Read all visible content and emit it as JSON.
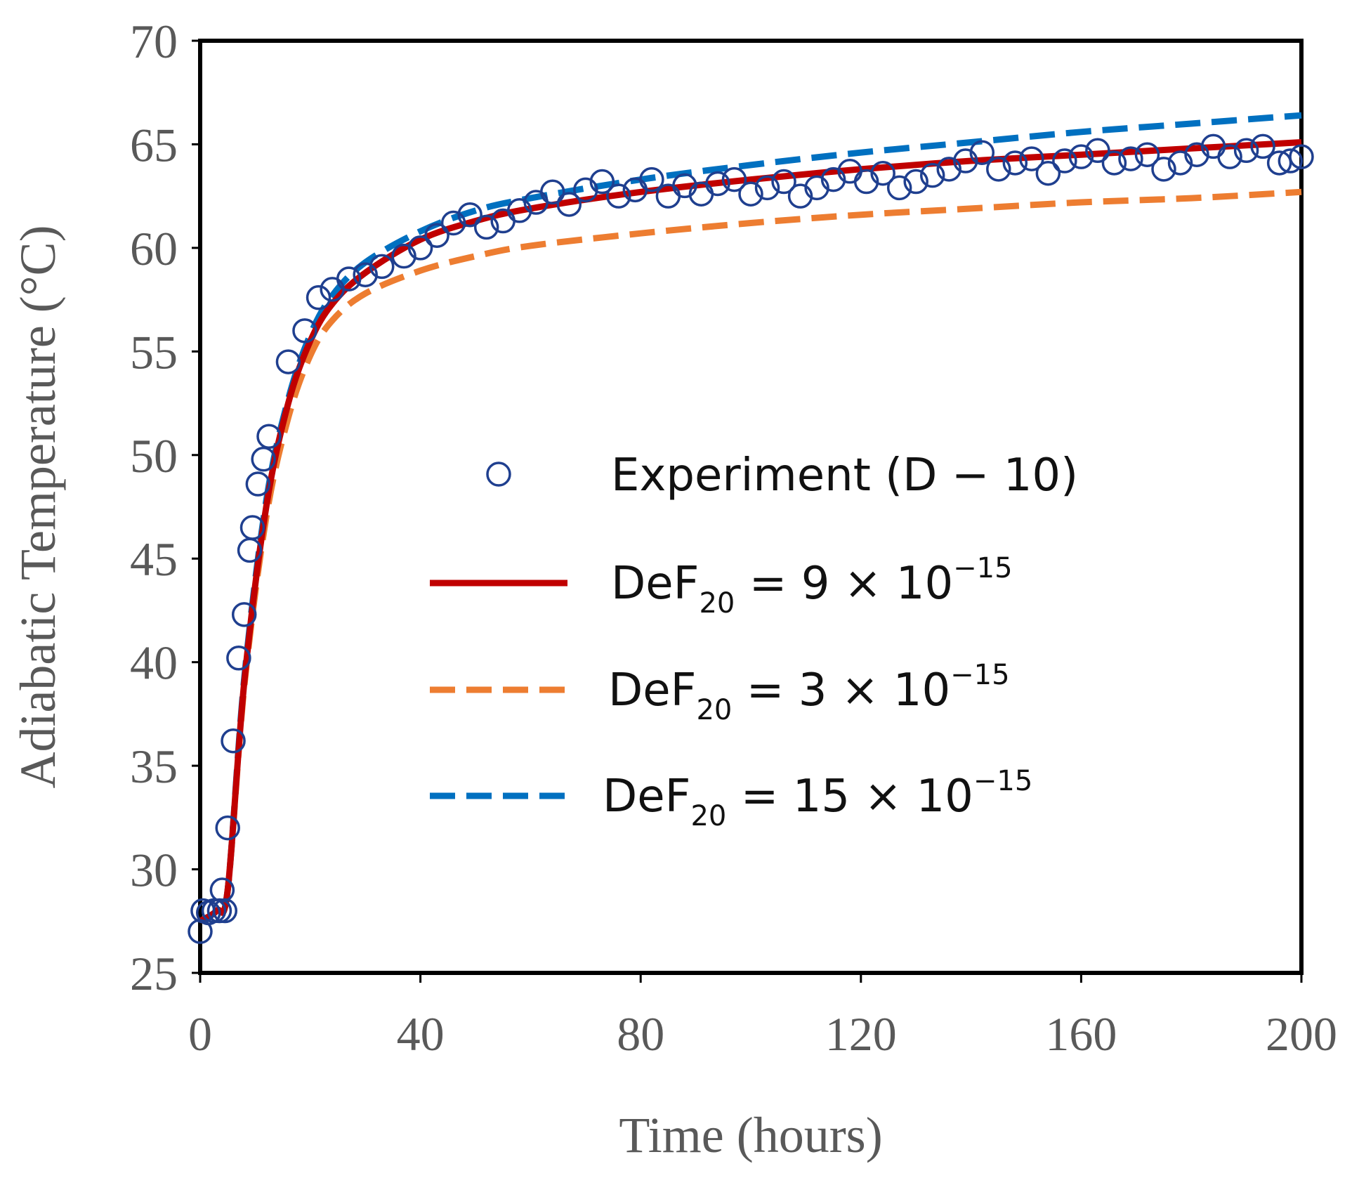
{
  "chart_data": {
    "type": "line",
    "title": "",
    "xlabel": "Time (hours)",
    "ylabel": "Adiabatic Temperature (°C)",
    "xlim": [
      0,
      200
    ],
    "ylim": [
      25,
      70
    ],
    "xticks": [
      0,
      40,
      80,
      120,
      160,
      200
    ],
    "xtick_labels": [
      "0",
      "40",
      "80",
      "120",
      "160",
      "200"
    ],
    "yticks": [
      25,
      30,
      35,
      40,
      45,
      50,
      55,
      60,
      65,
      70
    ],
    "ytick_labels": [
      "25",
      "30",
      "35",
      "40",
      "45",
      "50",
      "55",
      "60",
      "65",
      "70"
    ],
    "grid": false,
    "legend_position": "center-right",
    "experiment": {
      "name": "Experiment (D − 10)",
      "marker": "open-circle",
      "color": "#1f3f8f",
      "points": [
        [
          0,
          27
        ],
        [
          0.5,
          28
        ],
        [
          1.5,
          27.9
        ],
        [
          2.5,
          28
        ],
        [
          3.5,
          28
        ],
        [
          4,
          29
        ],
        [
          4.5,
          28
        ],
        [
          5,
          32
        ],
        [
          6,
          36.2
        ],
        [
          7,
          40.2
        ],
        [
          8,
          42.3
        ],
        [
          9,
          45.4
        ],
        [
          9.5,
          46.5
        ],
        [
          10.5,
          48.6
        ],
        [
          11.5,
          49.8
        ],
        [
          12.5,
          50.9
        ],
        [
          16,
          54.5
        ],
        [
          19,
          56
        ],
        [
          21.5,
          57.6
        ],
        [
          24,
          58
        ],
        [
          27,
          58.5
        ],
        [
          30,
          58.7
        ],
        [
          33,
          59.1
        ],
        [
          37,
          59.6
        ],
        [
          40,
          60
        ],
        [
          43,
          60.6
        ],
        [
          46,
          61.2
        ],
        [
          49,
          61.6
        ],
        [
          52,
          61
        ],
        [
          55,
          61.3
        ],
        [
          58,
          61.8
        ],
        [
          61,
          62.2
        ],
        [
          64,
          62.7
        ],
        [
          67,
          62.1
        ],
        [
          70,
          62.8
        ],
        [
          73,
          63.2
        ],
        [
          76,
          62.5
        ],
        [
          79,
          62.8
        ],
        [
          82,
          63.3
        ],
        [
          85,
          62.5
        ],
        [
          88,
          63
        ],
        [
          91,
          62.6
        ],
        [
          94,
          63.1
        ],
        [
          97,
          63.3
        ],
        [
          100,
          62.6
        ],
        [
          103,
          62.9
        ],
        [
          106,
          63.2
        ],
        [
          109,
          62.5
        ],
        [
          112,
          62.9
        ],
        [
          115,
          63.3
        ],
        [
          118,
          63.7
        ],
        [
          121,
          63.2
        ],
        [
          124,
          63.6
        ],
        [
          127,
          62.9
        ],
        [
          130,
          63.2
        ],
        [
          133,
          63.5
        ],
        [
          136,
          63.8
        ],
        [
          139,
          64.2
        ],
        [
          142,
          64.6
        ],
        [
          145,
          63.8
        ],
        [
          148,
          64.1
        ],
        [
          151,
          64.3
        ],
        [
          154,
          63.6
        ],
        [
          157,
          64.2
        ],
        [
          160,
          64.4
        ],
        [
          163,
          64.7
        ],
        [
          166,
          64.1
        ],
        [
          169,
          64.3
        ],
        [
          172,
          64.5
        ],
        [
          175,
          63.8
        ],
        [
          178,
          64.1
        ],
        [
          181,
          64.5
        ],
        [
          184,
          64.9
        ],
        [
          187,
          64.4
        ],
        [
          190,
          64.7
        ],
        [
          193,
          64.9
        ],
        [
          196,
          64.1
        ],
        [
          198,
          64.2
        ],
        [
          200,
          64.4
        ]
      ]
    },
    "series": [
      {
        "name": "DeF20 = 9 × 10^−15",
        "label_base": "DeF",
        "label_sub": "20",
        "label_mid": " = 9 × 10",
        "label_sup": "−15",
        "style": "solid",
        "color": "#c00000",
        "points": [
          [
            0,
            27.5
          ],
          [
            3,
            28
          ],
          [
            5,
            29
          ],
          [
            8,
            39
          ],
          [
            12,
            47.5
          ],
          [
            16,
            52.5
          ],
          [
            20,
            55.5
          ],
          [
            24,
            57.3
          ],
          [
            30,
            58.8
          ],
          [
            40,
            60.4
          ],
          [
            50,
            61.3
          ],
          [
            60,
            61.9
          ],
          [
            80,
            62.7
          ],
          [
            100,
            63.3
          ],
          [
            120,
            63.8
          ],
          [
            140,
            64.2
          ],
          [
            160,
            64.5
          ],
          [
            180,
            64.8
          ],
          [
            200,
            65.1
          ]
        ]
      },
      {
        "name": "DeF20 = 3 × 10^−15",
        "label_base": "DeF",
        "label_sub": "20",
        "label_mid": " = 3 × 10",
        "label_sup": "−15",
        "style": "dashed",
        "color": "#ed7d31",
        "points": [
          [
            0,
            27.5
          ],
          [
            3,
            28
          ],
          [
            5,
            29
          ],
          [
            8,
            38.8
          ],
          [
            12,
            47
          ],
          [
            16,
            51.8
          ],
          [
            20,
            54.8
          ],
          [
            24,
            56.5
          ],
          [
            30,
            57.8
          ],
          [
            40,
            58.9
          ],
          [
            50,
            59.6
          ],
          [
            60,
            60.1
          ],
          [
            80,
            60.7
          ],
          [
            100,
            61.2
          ],
          [
            120,
            61.6
          ],
          [
            140,
            61.9
          ],
          [
            160,
            62.2
          ],
          [
            180,
            62.4
          ],
          [
            200,
            62.7
          ]
        ]
      },
      {
        "name": "DeF20 = 15 × 10^−15",
        "label_base": "DeF",
        "label_sub": "20",
        "label_mid": " = 15 × 10",
        "label_sup": "−15",
        "style": "dashed",
        "color": "#0070c0",
        "points": [
          [
            0,
            27.5
          ],
          [
            3,
            28
          ],
          [
            5,
            29
          ],
          [
            8,
            39.2
          ],
          [
            12,
            47.8
          ],
          [
            16,
            52.7
          ],
          [
            20,
            55.8
          ],
          [
            24,
            57.7
          ],
          [
            30,
            59.3
          ],
          [
            40,
            60.8
          ],
          [
            50,
            61.8
          ],
          [
            60,
            62.4
          ],
          [
            80,
            63.3
          ],
          [
            100,
            64
          ],
          [
            120,
            64.6
          ],
          [
            140,
            65.1
          ],
          [
            160,
            65.6
          ],
          [
            180,
            66
          ],
          [
            200,
            66.4
          ]
        ]
      }
    ]
  }
}
